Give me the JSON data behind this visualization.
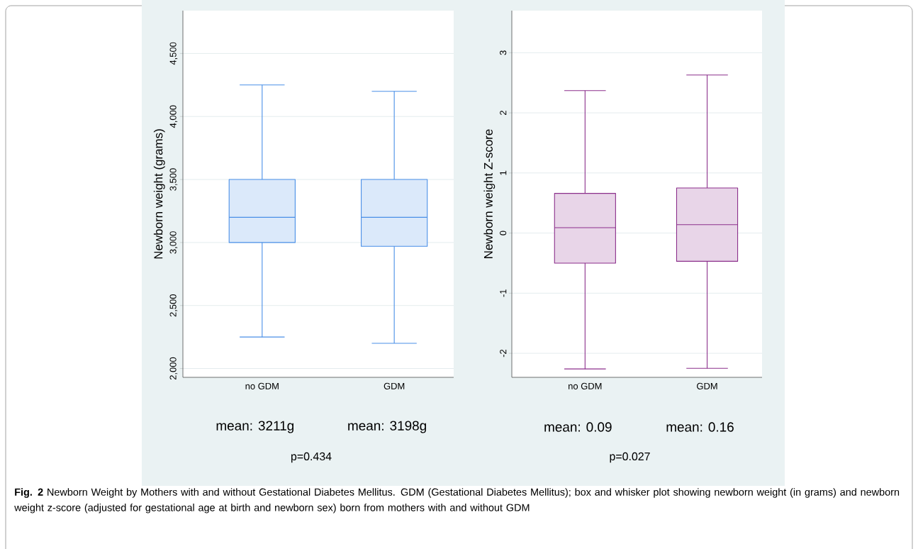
{
  "chart_data": [
    {
      "type": "box",
      "ylabel": "Newborn weight (grams)",
      "categories": [
        "no GDM",
        "GDM"
      ],
      "series": [
        {
          "color": "#4a8fe7",
          "boxes": [
            {
              "low": 2250,
              "q1": 3000,
              "median": 3200,
              "q3": 3500,
              "high": 4250
            },
            {
              "low": 2200,
              "q1": 2970,
              "median": 3200,
              "q3": 3500,
              "high": 4200
            }
          ]
        }
      ],
      "ylim": [
        1930,
        4840
      ],
      "yticks": [
        {
          "value": 2000,
          "label": "2,000"
        },
        {
          "value": 2500,
          "label": "2,500"
        },
        {
          "value": 3000,
          "label": "3,000"
        },
        {
          "value": 3500,
          "label": "3,500"
        },
        {
          "value": 4000,
          "label": "4,000"
        },
        {
          "value": 4500,
          "label": "4,500"
        }
      ],
      "grid": "y",
      "annotations": [
        "mean: 3211g",
        "mean: 3198g",
        "p=0.434",
        "**Fig. 2** Newborn Weight by Mothers with and without Gestational Diabetes Mellitus. GDM (Gestational Diabetes Mellitus); box and whisker plot showing newborn weight (in grams) and newborn weight z-score (adjusted for gestational age at birth and newborn sex) born from mothers with and without GDM"
      ]
    },
    {
      "type": "box",
      "ylabel": "Newborn weight Z-score",
      "categories": [
        "no GDM",
        "GDM"
      ],
      "series": [
        {
          "color": "#8b2f8b",
          "boxes": [
            {
              "low": -2.26,
              "q1": -0.5,
              "median": 0.09,
              "q3": 0.66,
              "high": 2.37
            },
            {
              "low": -2.25,
              "q1": -0.47,
              "median": 0.14,
              "q3": 0.75,
              "high": 2.63
            }
          ]
        }
      ],
      "ylim": [
        -2.4,
        3.7
      ],
      "yticks": [
        -2,
        -1,
        0,
        1,
        2,
        3
      ],
      "grid": "y",
      "annotations": [
        "mean: 0.09",
        "mean: 0.16",
        "p=0.027"
      ]
    }
  ]
}
